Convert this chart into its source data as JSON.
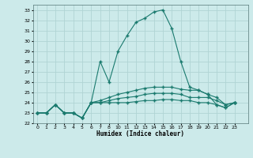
{
  "xlabel": "Humidex (Indice chaleur)",
  "bg_color": "#cceaea",
  "grid_color": "#b0d4d4",
  "line_color": "#1a7a6e",
  "xlim": [
    0,
    23
  ],
  "ylim": [
    22,
    33.5
  ],
  "yticks": [
    22,
    23,
    24,
    25,
    26,
    27,
    28,
    29,
    30,
    31,
    32,
    33
  ],
  "xtick_labels": [
    "0",
    "1",
    "2",
    "3",
    "4",
    "5",
    "6",
    "7",
    "8",
    "10",
    "11",
    "12",
    "13",
    "14",
    "15",
    "16",
    "17",
    "18",
    "19",
    "20",
    "21",
    "22",
    "23"
  ],
  "xtick_pos": [
    0,
    1,
    2,
    3,
    4,
    5,
    6,
    7,
    8,
    9,
    10,
    11,
    12,
    13,
    14,
    15,
    16,
    17,
    18,
    19,
    20,
    21,
    22
  ],
  "lines": [
    {
      "x": [
        0,
        1,
        2,
        3,
        4,
        5,
        6,
        7,
        8,
        9,
        10,
        11,
        12,
        13,
        14,
        15,
        16,
        17,
        18,
        19,
        20,
        21,
        22
      ],
      "y": [
        23.0,
        23.0,
        23.8,
        23.0,
        23.0,
        22.5,
        24.0,
        28.0,
        26.0,
        29.0,
        30.5,
        31.8,
        32.2,
        32.8,
        33.0,
        31.2,
        28.0,
        25.5,
        25.2,
        24.8,
        23.8,
        23.5,
        24.0
      ]
    },
    {
      "x": [
        0,
        1,
        2,
        3,
        4,
        5,
        6,
        7,
        8,
        9,
        10,
        11,
        12,
        13,
        14,
        15,
        16,
        17,
        18,
        19,
        20,
        21,
        22
      ],
      "y": [
        23.0,
        23.0,
        23.8,
        23.0,
        23.0,
        22.5,
        24.0,
        24.2,
        24.5,
        24.8,
        25.0,
        25.2,
        25.4,
        25.5,
        25.5,
        25.5,
        25.3,
        25.2,
        25.2,
        24.8,
        24.5,
        23.8,
        24.0
      ]
    },
    {
      "x": [
        0,
        1,
        2,
        3,
        4,
        5,
        6,
        7,
        8,
        9,
        10,
        11,
        12,
        13,
        14,
        15,
        16,
        17,
        18,
        19,
        20,
        21,
        22
      ],
      "y": [
        23.0,
        23.0,
        23.8,
        23.0,
        23.0,
        22.5,
        24.0,
        24.0,
        24.2,
        24.4,
        24.5,
        24.6,
        24.8,
        24.9,
        24.9,
        24.9,
        24.8,
        24.5,
        24.5,
        24.5,
        24.2,
        23.8,
        24.0
      ]
    },
    {
      "x": [
        0,
        1,
        2,
        3,
        4,
        5,
        6,
        7,
        8,
        9,
        10,
        11,
        12,
        13,
        14,
        15,
        16,
        17,
        18,
        19,
        20,
        21,
        22
      ],
      "y": [
        23.0,
        23.0,
        23.8,
        23.0,
        23.0,
        22.5,
        24.0,
        24.0,
        24.0,
        24.0,
        24.0,
        24.1,
        24.2,
        24.2,
        24.3,
        24.3,
        24.2,
        24.2,
        24.0,
        24.0,
        23.8,
        23.5,
        24.0
      ]
    }
  ]
}
